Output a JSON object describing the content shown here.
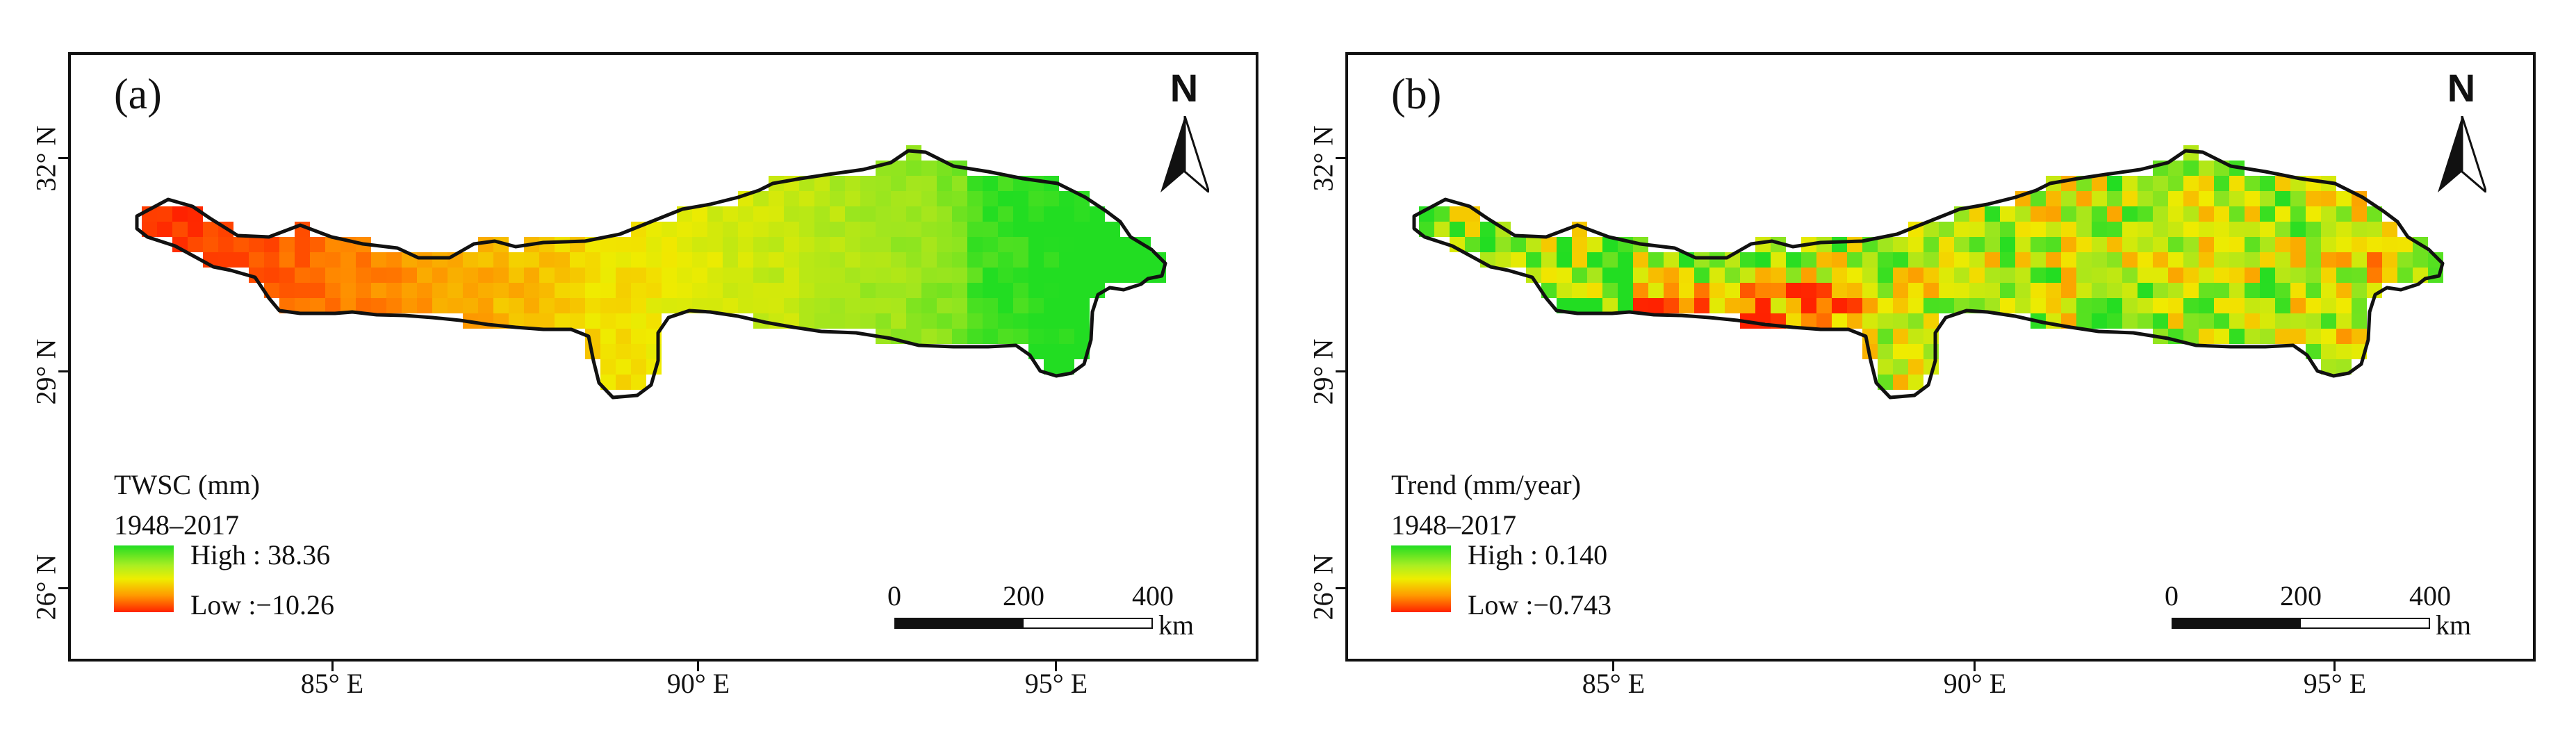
{
  "panels": [
    {
      "label": "(a)",
      "legend_title": "TWSC (mm)",
      "period": "1948–2017",
      "high": "High : 38.36",
      "low": "Low :−10.26",
      "north": "N",
      "scale_ticks": [
        "0",
        "200",
        "400"
      ],
      "scale_unit": "km",
      "ramp_colors": [
        "#22dd22",
        "#eeee00",
        "#ff2200"
      ]
    },
    {
      "label": "(b)",
      "legend_title": "Trend (mm/year)",
      "period": "1948–2017",
      "high": "High : 0.140",
      "low": "Low :−0.743",
      "north": "N",
      "scale_ticks": [
        "0",
        "200",
        "400"
      ],
      "scale_unit": "km",
      "ramp_colors": [
        "#22dd22",
        "#eeee00",
        "#ff2200"
      ]
    }
  ],
  "axes": {
    "y_labels": [
      "32° N",
      "29° N",
      "26° N"
    ],
    "x_labels": [
      "85° E",
      "90° E",
      "95° E"
    ]
  }
}
